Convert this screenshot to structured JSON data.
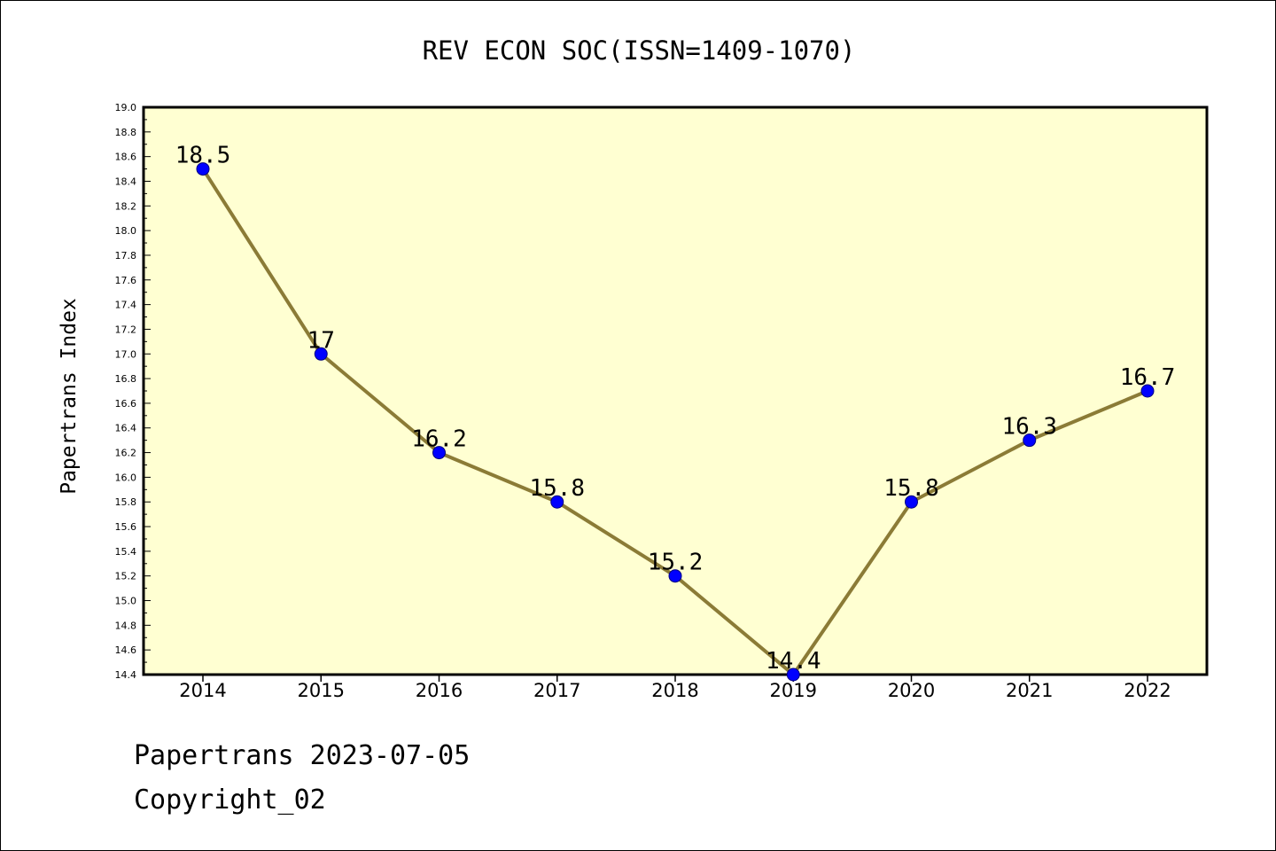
{
  "chart_data": {
    "type": "line",
    "title": "REV ECON SOC(ISSN=1409-1070)",
    "xlabel": "",
    "ylabel": "Papertrans Index",
    "x": [
      "2014",
      "2015",
      "2016",
      "2017",
      "2018",
      "2019",
      "2020",
      "2021",
      "2022"
    ],
    "series": [
      {
        "values": [
          18.5,
          17,
          16.2,
          15.8,
          15.2,
          14.4,
          15.8,
          16.3,
          16.7
        ]
      }
    ],
    "data_labels": [
      "18.5",
      "17",
      "16.2",
      "15.8",
      "15.2",
      "14.4",
      "15.8",
      "16.3",
      "16.7"
    ],
    "ylim": [
      14.4,
      19.0
    ],
    "yticks": [
      "14.4",
      "14.6",
      "14.8",
      "15.0",
      "15.2",
      "15.4",
      "15.6",
      "15.8",
      "16.0",
      "16.2",
      "16.4",
      "16.6",
      "16.8",
      "17.0",
      "17.2",
      "17.4",
      "17.6",
      "17.8",
      "18.0",
      "18.2",
      "18.4",
      "18.6",
      "18.8",
      "19.0"
    ],
    "grid": false,
    "colors": {
      "plot_background": "#ffffd2",
      "line": "#8b7b36",
      "marker": "#0000ff",
      "marker_edge": "#000080"
    }
  },
  "footer": {
    "date_line": "Papertrans 2023-07-05",
    "copyright": "Copyright_02"
  }
}
